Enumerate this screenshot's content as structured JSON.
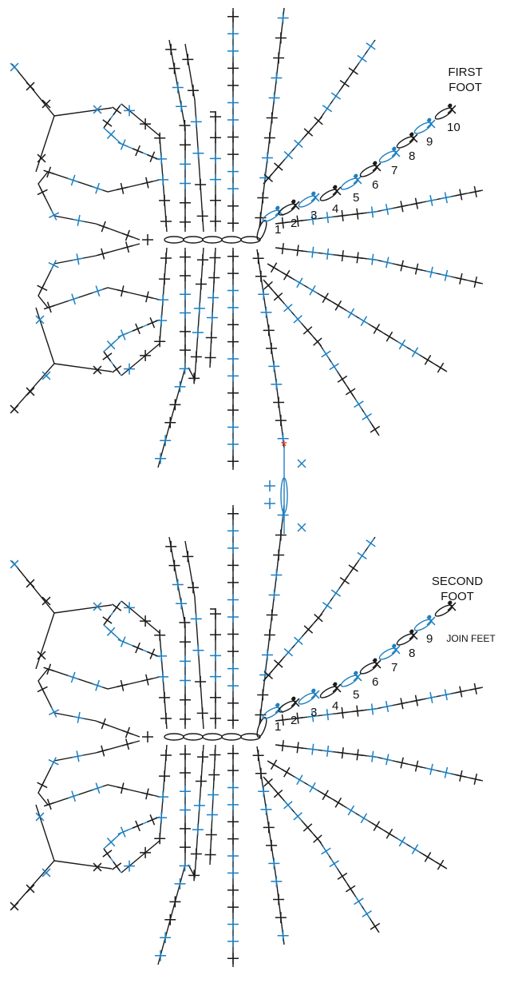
{
  "colors": {
    "black": "#1a1a1a",
    "blue": "#1f7fbf",
    "red": "#d9362b"
  },
  "diagrams": [
    {
      "label_line1": "FIRST",
      "label_line2": "FOOT",
      "numbers": [
        "1",
        "2",
        "3",
        "4",
        "5",
        "6",
        "7",
        "8",
        "9",
        "10"
      ],
      "join_text": ""
    },
    {
      "label_line1": "SECOND",
      "label_line2": "FOOT",
      "numbers": [
        "1",
        "2",
        "3",
        "4",
        "5",
        "6",
        "7",
        "8",
        "9"
      ],
      "join_text": "JOIN FEET"
    }
  ],
  "start_marker": "*"
}
